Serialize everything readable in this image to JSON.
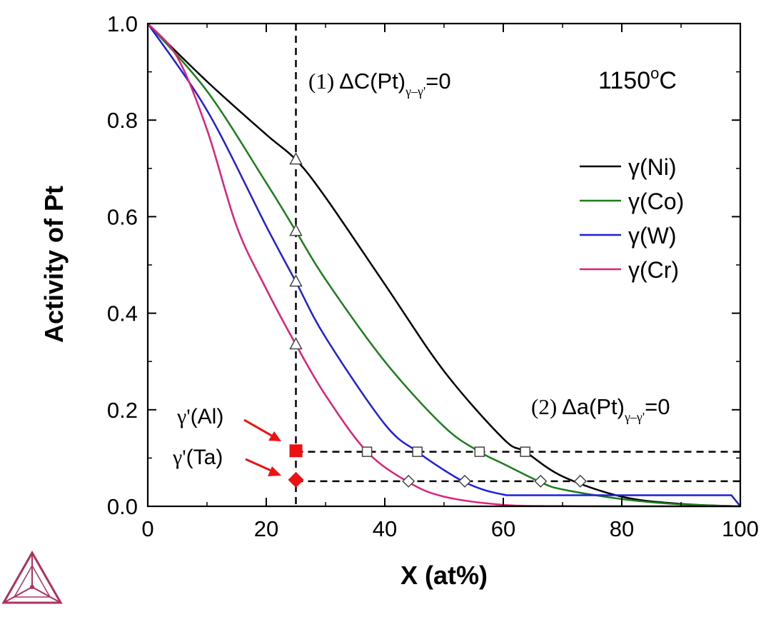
{
  "chart_data": {
    "type": "line",
    "xlabel": "X (at%)",
    "ylabel": "Activity of Pt",
    "xlim": [
      0,
      100
    ],
    "ylim": [
      0,
      1.0
    ],
    "x_ticks": [
      "0",
      "20",
      "40",
      "60",
      "80",
      "100"
    ],
    "y_ticks": [
      "0.0",
      "0.2",
      "0.4",
      "0.6",
      "0.8",
      "1.0"
    ],
    "temperature_label": "1150",
    "temperature_unit": "oC",
    "legend_position": "right",
    "series": [
      {
        "name": "γ(Ni)",
        "color": "#000000",
        "x": [
          0,
          10,
          20,
          25,
          30,
          40,
          50,
          60,
          63.7,
          70,
          80,
          90,
          100
        ],
        "y": [
          1.0,
          0.88,
          0.77,
          0.718,
          0.64,
          0.46,
          0.28,
          0.14,
          0.113,
          0.062,
          0.02,
          0.005,
          0.0
        ]
      },
      {
        "name": "γ(Co)",
        "color": "#1a7f1a",
        "x": [
          0,
          10,
          20,
          25,
          30,
          40,
          50,
          56,
          60,
          66.3,
          70,
          80,
          90,
          100
        ],
        "y": [
          1.0,
          0.86,
          0.67,
          0.57,
          0.47,
          0.3,
          0.165,
          0.113,
          0.088,
          0.05,
          0.035,
          0.015,
          0.004,
          0.0
        ]
      },
      {
        "name": "γ(W)",
        "color": "#1f1fdd",
        "x": [
          0,
          10,
          20,
          25,
          30,
          40,
          45.5,
          50,
          53.5,
          57,
          60.5,
          98.5,
          100
        ],
        "y": [
          1.0,
          0.82,
          0.58,
          0.465,
          0.35,
          0.17,
          0.113,
          0.075,
          0.05,
          0.033,
          0.023,
          0.023,
          0.0
        ]
      },
      {
        "name": "γ(Cr)",
        "color": "#e0207a",
        "x": [
          0,
          5,
          10,
          15,
          20,
          25,
          30,
          37,
          44,
          50,
          60,
          70,
          80,
          100
        ],
        "y": [
          1.0,
          0.93,
          0.78,
          0.58,
          0.45,
          0.335,
          0.23,
          0.113,
          0.05,
          0.02,
          0.003,
          0.0005,
          0.0,
          0.0
        ]
      }
    ],
    "markers_triangle": {
      "x": [
        25,
        25,
        25,
        25
      ],
      "y": [
        0.718,
        0.57,
        0.465,
        0.335
      ]
    },
    "markers_square": {
      "x": [
        37,
        45.5,
        56,
        63.7
      ],
      "y": [
        0.113,
        0.113,
        0.113,
        0.113
      ]
    },
    "markers_diamond": {
      "x": [
        44,
        53.5,
        66.3,
        73
      ],
      "y": [
        0.052,
        0.052,
        0.052,
        0.052
      ]
    },
    "vertical_line_x": 25,
    "horizontal_lines": [
      {
        "y": 0.113,
        "x_start": 25,
        "x_end": 100
      },
      {
        "y": 0.052,
        "x_start": 25,
        "x_end": 100
      }
    ],
    "phase_points": [
      {
        "label_base": "γ'",
        "label_elem": "(Al)",
        "x": 25,
        "y": 0.115,
        "marker": "square",
        "color": "#ee1111"
      },
      {
        "label_base": "γ'",
        "label_elem": "(Ta)",
        "x": 25,
        "y": 0.055,
        "marker": "diamond",
        "color": "#ee1111"
      }
    ],
    "annotation1": {
      "num": "(1)",
      "delta": "ΔC(Pt)",
      "sub": "γ–γ'",
      "tail": "=0"
    },
    "annotation2": {
      "num": "(2)",
      "delta": "Δa(Pt)",
      "sub": "γ–γ'",
      "tail": "=0"
    }
  }
}
